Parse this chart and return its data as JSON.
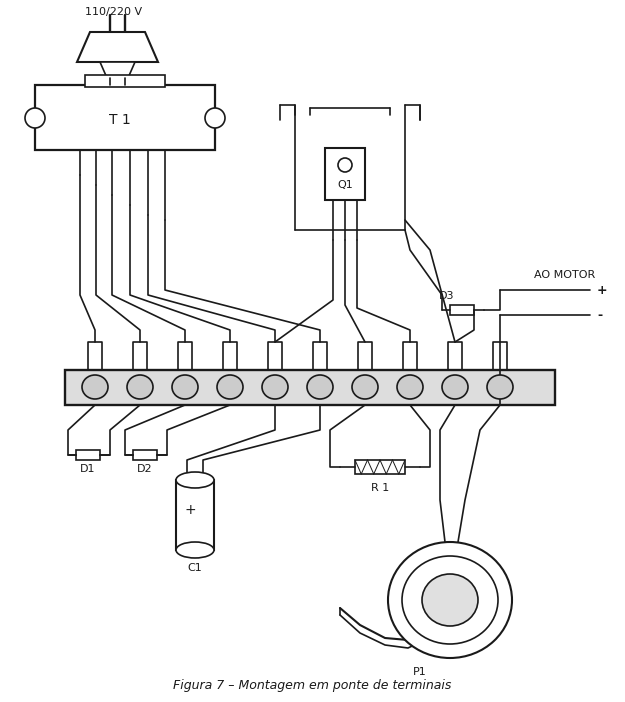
{
  "title": "Figura 7 – Montagem em ponte de terminais",
  "bg_color": "#ffffff",
  "line_color": "#1a1a1a",
  "figsize": [
    6.25,
    7.02
  ],
  "dpi": 100,
  "labels": {
    "voltage": "110/220 V",
    "T1": "T 1",
    "Q1": "Q1",
    "D1": "D1",
    "D2": "D2",
    "D3": "D3",
    "C1": "C1",
    "R1": "R 1",
    "P1": "P1",
    "plus": "+",
    "minus": "-",
    "ao_motor": "AO MOTOR"
  }
}
